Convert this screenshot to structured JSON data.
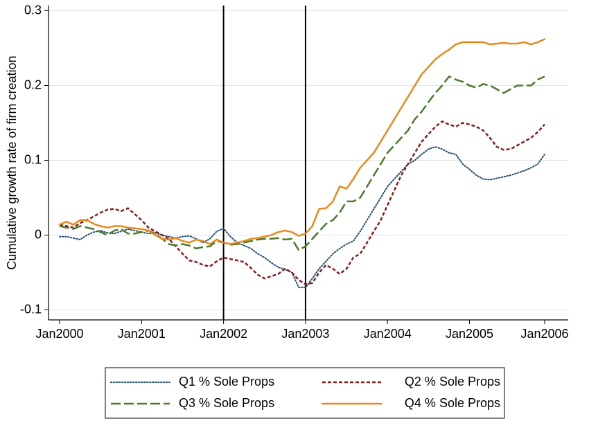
{
  "chart_data": {
    "type": "line",
    "ylabel": "Cumulative growth rate of firm creation",
    "xlabel": "",
    "xlim": [
      0,
      72
    ],
    "ylim": [
      -0.11,
      0.31
    ],
    "x_ticks": [
      {
        "x": 0,
        "label": "Jan2000"
      },
      {
        "x": 12,
        "label": "Jan2001"
      },
      {
        "x": 24,
        "label": "Jan2002"
      },
      {
        "x": 36,
        "label": "Jan2003"
      },
      {
        "x": 48,
        "label": "Jan2004"
      },
      {
        "x": 60,
        "label": "Jan2005"
      },
      {
        "x": 71,
        "label": "Jan2006"
      }
    ],
    "y_ticks": [
      {
        "y": -0.1,
        "label": "-0.1"
      },
      {
        "y": 0,
        "label": "0"
      },
      {
        "y": 0.1,
        "label": "0.1"
      },
      {
        "y": 0.2,
        "label": "0.2"
      },
      {
        "y": 0.3,
        "label": "0.3"
      }
    ],
    "vertical_lines": [
      24,
      36
    ],
    "grid": "horizontal",
    "legend_position": "bottom",
    "series": [
      {
        "name": "Q1 % Sole Props",
        "color": "#1f4e79",
        "dash": "dotted",
        "points": [
          [
            0,
            -0.002
          ],
          [
            1,
            -0.002
          ],
          [
            2,
            -0.004
          ],
          [
            3,
            -0.006
          ],
          [
            4,
            0.0
          ],
          [
            5,
            0.004
          ],
          [
            6,
            0.006
          ],
          [
            7,
            0.003
          ],
          [
            8,
            0.002
          ],
          [
            9,
            0.005
          ],
          [
            10,
            0.008
          ],
          [
            11,
            0.006
          ],
          [
            12,
            0.004
          ],
          [
            13,
            0.002
          ],
          [
            14,
            0.003
          ],
          [
            15,
            0.0
          ],
          [
            16,
            -0.002
          ],
          [
            17,
            -0.004
          ],
          [
            18,
            -0.002
          ],
          [
            19,
            -0.001
          ],
          [
            20,
            -0.005
          ],
          [
            21,
            -0.01
          ],
          [
            22,
            -0.005
          ],
          [
            23,
            0.005
          ],
          [
            24,
            0.009
          ],
          [
            25,
            -0.002
          ],
          [
            26,
            -0.01
          ],
          [
            27,
            -0.014
          ],
          [
            28,
            -0.018
          ],
          [
            29,
            -0.025
          ],
          [
            30,
            -0.03
          ],
          [
            31,
            -0.037
          ],
          [
            32,
            -0.043
          ],
          [
            33,
            -0.046
          ],
          [
            34,
            -0.05
          ],
          [
            35,
            -0.07
          ],
          [
            36,
            -0.07
          ],
          [
            37,
            -0.058
          ],
          [
            38,
            -0.045
          ],
          [
            39,
            -0.035
          ],
          [
            40,
            -0.025
          ],
          [
            41,
            -0.018
          ],
          [
            42,
            -0.012
          ],
          [
            43,
            -0.008
          ],
          [
            44,
            0.005
          ],
          [
            45,
            0.02
          ],
          [
            46,
            0.035
          ],
          [
            47,
            0.05
          ],
          [
            48,
            0.065
          ],
          [
            49,
            0.075
          ],
          [
            50,
            0.085
          ],
          [
            51,
            0.095
          ],
          [
            52,
            0.1
          ],
          [
            53,
            0.108
          ],
          [
            54,
            0.115
          ],
          [
            55,
            0.118
          ],
          [
            56,
            0.115
          ],
          [
            57,
            0.11
          ],
          [
            58,
            0.108
          ],
          [
            59,
            0.095
          ],
          [
            60,
            0.088
          ],
          [
            61,
            0.08
          ],
          [
            62,
            0.075
          ],
          [
            63,
            0.074
          ],
          [
            64,
            0.076
          ],
          [
            65,
            0.078
          ],
          [
            66,
            0.08
          ],
          [
            67,
            0.083
          ],
          [
            68,
            0.086
          ],
          [
            69,
            0.09
          ],
          [
            70,
            0.095
          ],
          [
            71,
            0.108
          ]
        ]
      },
      {
        "name": "Q2 % Sole Props",
        "color": "#8b1a1a",
        "dash": "short-dash",
        "points": [
          [
            0,
            0.014
          ],
          [
            1,
            0.012
          ],
          [
            2,
            0.01
          ],
          [
            3,
            0.016
          ],
          [
            4,
            0.02
          ],
          [
            5,
            0.025
          ],
          [
            6,
            0.03
          ],
          [
            7,
            0.034
          ],
          [
            8,
            0.035
          ],
          [
            9,
            0.032
          ],
          [
            10,
            0.036
          ],
          [
            11,
            0.028
          ],
          [
            12,
            0.02
          ],
          [
            13,
            0.01
          ],
          [
            14,
            0.005
          ],
          [
            15,
            0.0
          ],
          [
            16,
            -0.005
          ],
          [
            17,
            -0.015
          ],
          [
            18,
            -0.025
          ],
          [
            19,
            -0.034
          ],
          [
            20,
            -0.036
          ],
          [
            21,
            -0.04
          ],
          [
            22,
            -0.042
          ],
          [
            23,
            -0.035
          ],
          [
            24,
            -0.03
          ],
          [
            25,
            -0.032
          ],
          [
            26,
            -0.034
          ],
          [
            27,
            -0.036
          ],
          [
            28,
            -0.044
          ],
          [
            29,
            -0.053
          ],
          [
            30,
            -0.058
          ],
          [
            31,
            -0.055
          ],
          [
            32,
            -0.052
          ],
          [
            33,
            -0.045
          ],
          [
            34,
            -0.05
          ],
          [
            35,
            -0.06
          ],
          [
            36,
            -0.066
          ],
          [
            37,
            -0.064
          ],
          [
            38,
            -0.05
          ],
          [
            39,
            -0.04
          ],
          [
            40,
            -0.045
          ],
          [
            41,
            -0.052
          ],
          [
            42,
            -0.045
          ],
          [
            43,
            -0.03
          ],
          [
            44,
            -0.025
          ],
          [
            45,
            -0.01
          ],
          [
            46,
            0.005
          ],
          [
            47,
            0.02
          ],
          [
            48,
            0.04
          ],
          [
            49,
            0.06
          ],
          [
            50,
            0.08
          ],
          [
            51,
            0.095
          ],
          [
            52,
            0.11
          ],
          [
            53,
            0.125
          ],
          [
            54,
            0.135
          ],
          [
            55,
            0.145
          ],
          [
            56,
            0.152
          ],
          [
            57,
            0.148
          ],
          [
            58,
            0.145
          ],
          [
            59,
            0.15
          ],
          [
            60,
            0.148
          ],
          [
            61,
            0.145
          ],
          [
            62,
            0.14
          ],
          [
            63,
            0.13
          ],
          [
            64,
            0.118
          ],
          [
            65,
            0.114
          ],
          [
            66,
            0.115
          ],
          [
            67,
            0.12
          ],
          [
            68,
            0.125
          ],
          [
            69,
            0.13
          ],
          [
            70,
            0.138
          ],
          [
            71,
            0.148
          ]
        ]
      },
      {
        "name": "Q3 % Sole Props",
        "color": "#4a7a2a",
        "dash": "long-dash",
        "points": [
          [
            0,
            0.012
          ],
          [
            1,
            0.01
          ],
          [
            2,
            0.008
          ],
          [
            3,
            0.012
          ],
          [
            4,
            0.01
          ],
          [
            5,
            0.008
          ],
          [
            6,
            0.004
          ],
          [
            7,
            0.0
          ],
          [
            8,
            0.006
          ],
          [
            9,
            0.008
          ],
          [
            10,
            0.002
          ],
          [
            11,
            0.002
          ],
          [
            12,
            0.004
          ],
          [
            13,
            0.006
          ],
          [
            14,
            0.002
          ],
          [
            15,
            -0.005
          ],
          [
            16,
            -0.012
          ],
          [
            17,
            -0.014
          ],
          [
            18,
            -0.012
          ],
          [
            19,
            -0.014
          ],
          [
            20,
            -0.018
          ],
          [
            21,
            -0.016
          ],
          [
            22,
            -0.015
          ],
          [
            23,
            -0.008
          ],
          [
            24,
            -0.01
          ],
          [
            25,
            -0.013
          ],
          [
            26,
            -0.012
          ],
          [
            27,
            -0.01
          ],
          [
            28,
            -0.008
          ],
          [
            29,
            -0.006
          ],
          [
            30,
            -0.005
          ],
          [
            31,
            -0.005
          ],
          [
            32,
            -0.004
          ],
          [
            33,
            -0.006
          ],
          [
            34,
            -0.005
          ],
          [
            35,
            -0.02
          ],
          [
            36,
            -0.015
          ],
          [
            37,
            -0.005
          ],
          [
            38,
            0.005
          ],
          [
            39,
            0.015
          ],
          [
            40,
            0.02
          ],
          [
            41,
            0.03
          ],
          [
            42,
            0.045
          ],
          [
            43,
            0.045
          ],
          [
            44,
            0.05
          ],
          [
            45,
            0.065
          ],
          [
            46,
            0.08
          ],
          [
            47,
            0.095
          ],
          [
            48,
            0.11
          ],
          [
            49,
            0.12
          ],
          [
            50,
            0.13
          ],
          [
            51,
            0.14
          ],
          [
            52,
            0.155
          ],
          [
            53,
            0.165
          ],
          [
            54,
            0.178
          ],
          [
            55,
            0.19
          ],
          [
            56,
            0.2
          ],
          [
            57,
            0.212
          ],
          [
            58,
            0.208
          ],
          [
            59,
            0.205
          ],
          [
            60,
            0.2
          ],
          [
            61,
            0.197
          ],
          [
            62,
            0.202
          ],
          [
            63,
            0.2
          ],
          [
            64,
            0.195
          ],
          [
            65,
            0.19
          ],
          [
            66,
            0.195
          ],
          [
            67,
            0.2
          ],
          [
            68,
            0.2
          ],
          [
            69,
            0.2
          ],
          [
            70,
            0.208
          ],
          [
            71,
            0.212
          ]
        ]
      },
      {
        "name": "Q4 % Sole Props",
        "color": "#e8891a",
        "dash": "solid",
        "points": [
          [
            0,
            0.014
          ],
          [
            1,
            0.018
          ],
          [
            2,
            0.014
          ],
          [
            3,
            0.02
          ],
          [
            4,
            0.02
          ],
          [
            5,
            0.015
          ],
          [
            6,
            0.012
          ],
          [
            7,
            0.01
          ],
          [
            8,
            0.012
          ],
          [
            9,
            0.012
          ],
          [
            10,
            0.01
          ],
          [
            11,
            0.009
          ],
          [
            12,
            0.008
          ],
          [
            13,
            0.006
          ],
          [
            14,
            0.0
          ],
          [
            15,
            -0.005
          ],
          [
            16,
            -0.006
          ],
          [
            17,
            -0.004
          ],
          [
            18,
            -0.008
          ],
          [
            19,
            -0.01
          ],
          [
            20,
            -0.006
          ],
          [
            21,
            -0.008
          ],
          [
            22,
            -0.012
          ],
          [
            23,
            -0.006
          ],
          [
            24,
            -0.01
          ],
          [
            25,
            -0.012
          ],
          [
            26,
            -0.01
          ],
          [
            27,
            -0.008
          ],
          [
            28,
            -0.005
          ],
          [
            29,
            -0.004
          ],
          [
            30,
            -0.002
          ],
          [
            31,
            0.0
          ],
          [
            32,
            0.004
          ],
          [
            33,
            0.006
          ],
          [
            34,
            0.004
          ],
          [
            35,
            -0.001
          ],
          [
            36,
            0.002
          ],
          [
            37,
            0.012
          ],
          [
            38,
            0.035
          ],
          [
            39,
            0.036
          ],
          [
            40,
            0.045
          ],
          [
            41,
            0.065
          ],
          [
            42,
            0.062
          ],
          [
            43,
            0.075
          ],
          [
            44,
            0.09
          ],
          [
            45,
            0.1
          ],
          [
            46,
            0.11
          ],
          [
            47,
            0.125
          ],
          [
            48,
            0.14
          ],
          [
            49,
            0.155
          ],
          [
            50,
            0.17
          ],
          [
            51,
            0.185
          ],
          [
            52,
            0.2
          ],
          [
            53,
            0.215
          ],
          [
            54,
            0.225
          ],
          [
            55,
            0.235
          ],
          [
            56,
            0.242
          ],
          [
            57,
            0.248
          ],
          [
            58,
            0.255
          ],
          [
            59,
            0.258
          ],
          [
            60,
            0.258
          ],
          [
            61,
            0.258
          ],
          [
            62,
            0.258
          ],
          [
            63,
            0.255
          ],
          [
            64,
            0.256
          ],
          [
            65,
            0.257
          ],
          [
            66,
            0.256
          ],
          [
            67,
            0.256
          ],
          [
            68,
            0.258
          ],
          [
            69,
            0.255
          ],
          [
            70,
            0.258
          ],
          [
            71,
            0.262
          ]
        ]
      }
    ]
  }
}
